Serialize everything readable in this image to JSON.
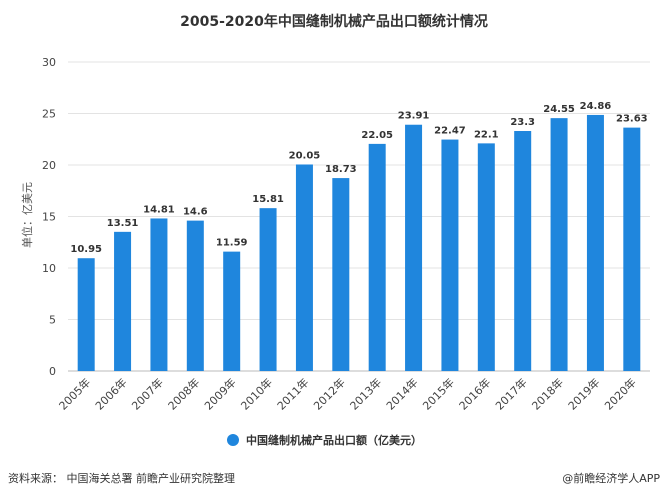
{
  "chart_data": {
    "type": "bar",
    "title": "2005-2020年中国缝制机械产品出口额统计情况",
    "ylabel": "单位：亿美元",
    "xlabel": "",
    "ylim": [
      0,
      30
    ],
    "yticks": [
      0,
      5,
      10,
      15,
      20,
      25,
      30
    ],
    "grid": true,
    "legend_position": "bottom",
    "categories": [
      "2005年",
      "2006年",
      "2007年",
      "2008年",
      "2009年",
      "2010年",
      "2011年",
      "2012年",
      "2013年",
      "2014年",
      "2015年",
      "2016年",
      "2017年",
      "2018年",
      "2019年",
      "2020年"
    ],
    "series": [
      {
        "name": "中国缝制机械产品出口额（亿美元）",
        "color": "#1f86dd",
        "values": [
          10.95,
          13.51,
          14.81,
          14.6,
          11.59,
          15.81,
          20.05,
          18.73,
          22.05,
          23.91,
          22.47,
          22.1,
          23.3,
          24.55,
          24.86,
          23.63
        ]
      }
    ]
  },
  "footer": {
    "source": "资料来源：  中国海关总署  前瞻产业研究院整理",
    "credit": "@前瞻经济学人APP"
  }
}
